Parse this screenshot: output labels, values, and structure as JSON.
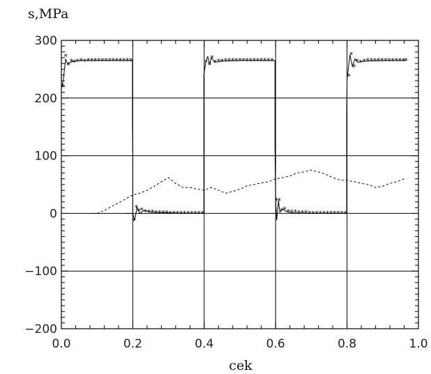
{
  "chart_data": {
    "type": "line",
    "ylabel": "s,MPa",
    "xlabel": "cek",
    "xlim": [
      0.0,
      1.0
    ],
    "ylim": [
      -200,
      300
    ],
    "x_ticks": [
      "0.0",
      "0.2",
      "0.4",
      "0.6",
      "0.8",
      "1.0"
    ],
    "y_ticks": [
      "300",
      "200",
      "100",
      "0",
      "−100",
      "−200"
    ],
    "grid": true,
    "series": [
      {
        "style": "solid-with-star-markers",
        "points": [
          [
            0.0,
            218
          ],
          [
            0.005,
            230
          ],
          [
            0.012,
            268
          ],
          [
            0.018,
            258
          ],
          [
            0.025,
            262
          ],
          [
            0.035,
            264
          ],
          [
            0.06,
            265
          ],
          [
            0.1,
            265
          ],
          [
            0.15,
            265
          ],
          [
            0.199,
            265
          ],
          [
            0.199,
            160
          ],
          [
            0.2,
            98
          ],
          [
            0.2,
            0
          ],
          [
            0.205,
            -12
          ],
          [
            0.212,
            10
          ],
          [
            0.22,
            0
          ],
          [
            0.23,
            5
          ],
          [
            0.25,
            2
          ],
          [
            0.3,
            1
          ],
          [
            0.35,
            0
          ],
          [
            0.399,
            0
          ],
          [
            0.399,
            240
          ],
          [
            0.405,
            265
          ],
          [
            0.41,
            272
          ],
          [
            0.415,
            258
          ],
          [
            0.42,
            270
          ],
          [
            0.43,
            262
          ],
          [
            0.45,
            264
          ],
          [
            0.5,
            265
          ],
          [
            0.55,
            265
          ],
          [
            0.598,
            265
          ],
          [
            0.598,
            120
          ],
          [
            0.6,
            25
          ],
          [
            0.603,
            -12
          ],
          [
            0.608,
            22
          ],
          [
            0.612,
            2
          ],
          [
            0.62,
            8
          ],
          [
            0.63,
            3
          ],
          [
            0.65,
            1
          ],
          [
            0.7,
            0
          ],
          [
            0.75,
            0
          ],
          [
            0.799,
            0
          ],
          [
            0.799,
            180
          ],
          [
            0.8,
            232
          ],
          [
            0.808,
            275
          ],
          [
            0.815,
            255
          ],
          [
            0.822,
            268
          ],
          [
            0.83,
            262
          ],
          [
            0.85,
            264
          ],
          [
            0.9,
            265
          ],
          [
            0.95,
            265
          ],
          [
            0.965,
            265
          ]
        ],
        "extra_segments": [
          [
            [
              0.085,
              0
            ],
            [
              0.095,
              0
            ]
          ],
          [
            [
              0.18,
              0
            ],
            [
              0.198,
              0
            ]
          ]
        ],
        "markers": [
          [
            0.005,
            220
          ],
          [
            0.012,
            272
          ],
          [
            0.02,
            258
          ],
          [
            0.028,
            264
          ],
          [
            0.036,
            262
          ],
          [
            0.045,
            264
          ],
          [
            0.055,
            265
          ],
          [
            0.065,
            264
          ],
          [
            0.075,
            265
          ],
          [
            0.085,
            265
          ],
          [
            0.095,
            265
          ],
          [
            0.105,
            265
          ],
          [
            0.115,
            265
          ],
          [
            0.125,
            265
          ],
          [
            0.135,
            265
          ],
          [
            0.145,
            265
          ],
          [
            0.155,
            265
          ],
          [
            0.165,
            265
          ],
          [
            0.175,
            265
          ],
          [
            0.185,
            265
          ],
          [
            0.195,
            265
          ],
          [
            0.203,
            -13
          ],
          [
            0.21,
            10
          ],
          [
            0.217,
            4
          ],
          [
            0.225,
            6
          ],
          [
            0.235,
            3
          ],
          [
            0.245,
            2
          ],
          [
            0.255,
            2
          ],
          [
            0.265,
            1
          ],
          [
            0.275,
            1
          ],
          [
            0.285,
            1
          ],
          [
            0.295,
            1
          ],
          [
            0.305,
            0
          ],
          [
            0.315,
            0
          ],
          [
            0.325,
            0
          ],
          [
            0.335,
            0
          ],
          [
            0.345,
            0
          ],
          [
            0.355,
            0
          ],
          [
            0.365,
            0
          ],
          [
            0.375,
            0
          ],
          [
            0.385,
            0
          ],
          [
            0.395,
            0
          ],
          [
            0.405,
            262
          ],
          [
            0.415,
            258
          ],
          [
            0.422,
            270
          ],
          [
            0.43,
            262
          ],
          [
            0.44,
            264
          ],
          [
            0.45,
            264
          ],
          [
            0.46,
            265
          ],
          [
            0.47,
            265
          ],
          [
            0.48,
            265
          ],
          [
            0.49,
            265
          ],
          [
            0.5,
            265
          ],
          [
            0.51,
            265
          ],
          [
            0.52,
            265
          ],
          [
            0.53,
            265
          ],
          [
            0.54,
            265
          ],
          [
            0.55,
            265
          ],
          [
            0.56,
            265
          ],
          [
            0.57,
            265
          ],
          [
            0.58,
            265
          ],
          [
            0.59,
            265
          ],
          [
            0.603,
            22
          ],
          [
            0.61,
            22
          ],
          [
            0.617,
            5
          ],
          [
            0.625,
            7
          ],
          [
            0.635,
            3
          ],
          [
            0.645,
            2
          ],
          [
            0.655,
            2
          ],
          [
            0.665,
            1
          ],
          [
            0.675,
            1
          ],
          [
            0.685,
            1
          ],
          [
            0.695,
            0
          ],
          [
            0.705,
            0
          ],
          [
            0.715,
            0
          ],
          [
            0.725,
            0
          ],
          [
            0.735,
            0
          ],
          [
            0.745,
            0
          ],
          [
            0.755,
            0
          ],
          [
            0.765,
            0
          ],
          [
            0.775,
            0
          ],
          [
            0.785,
            0
          ],
          [
            0.795,
            0
          ],
          [
            0.805,
            238
          ],
          [
            0.812,
            275
          ],
          [
            0.82,
            254
          ],
          [
            0.828,
            264
          ],
          [
            0.838,
            262
          ],
          [
            0.848,
            264
          ],
          [
            0.858,
            265
          ],
          [
            0.868,
            265
          ],
          [
            0.878,
            265
          ],
          [
            0.888,
            265
          ],
          [
            0.898,
            265
          ],
          [
            0.908,
            265
          ],
          [
            0.918,
            265
          ],
          [
            0.928,
            265
          ],
          [
            0.938,
            265
          ],
          [
            0.948,
            265
          ],
          [
            0.958,
            265
          ],
          [
            0.965,
            265
          ]
        ]
      },
      {
        "style": "dashed",
        "points": [
          [
            0.1,
            0
          ],
          [
            0.12,
            5
          ],
          [
            0.15,
            15
          ],
          [
            0.18,
            25
          ],
          [
            0.2,
            32
          ],
          [
            0.22,
            35
          ],
          [
            0.24,
            40
          ],
          [
            0.26,
            47
          ],
          [
            0.28,
            55
          ],
          [
            0.3,
            62
          ],
          [
            0.32,
            52
          ],
          [
            0.34,
            45
          ],
          [
            0.36,
            45
          ],
          [
            0.38,
            42
          ],
          [
            0.4,
            40
          ],
          [
            0.42,
            45
          ],
          [
            0.44,
            40
          ],
          [
            0.46,
            35
          ],
          [
            0.48,
            38
          ],
          [
            0.5,
            42
          ],
          [
            0.52,
            48
          ],
          [
            0.54,
            50
          ],
          [
            0.56,
            53
          ],
          [
            0.58,
            55
          ],
          [
            0.6,
            60
          ],
          [
            0.62,
            62
          ],
          [
            0.64,
            65
          ],
          [
            0.66,
            70
          ],
          [
            0.68,
            72
          ],
          [
            0.7,
            75
          ],
          [
            0.72,
            72
          ],
          [
            0.74,
            68
          ],
          [
            0.76,
            62
          ],
          [
            0.78,
            58
          ],
          [
            0.8,
            57
          ],
          [
            0.82,
            55
          ],
          [
            0.84,
            52
          ],
          [
            0.86,
            50
          ],
          [
            0.88,
            45
          ],
          [
            0.9,
            47
          ],
          [
            0.92,
            52
          ],
          [
            0.94,
            55
          ],
          [
            0.96,
            60
          ]
        ]
      }
    ]
  }
}
